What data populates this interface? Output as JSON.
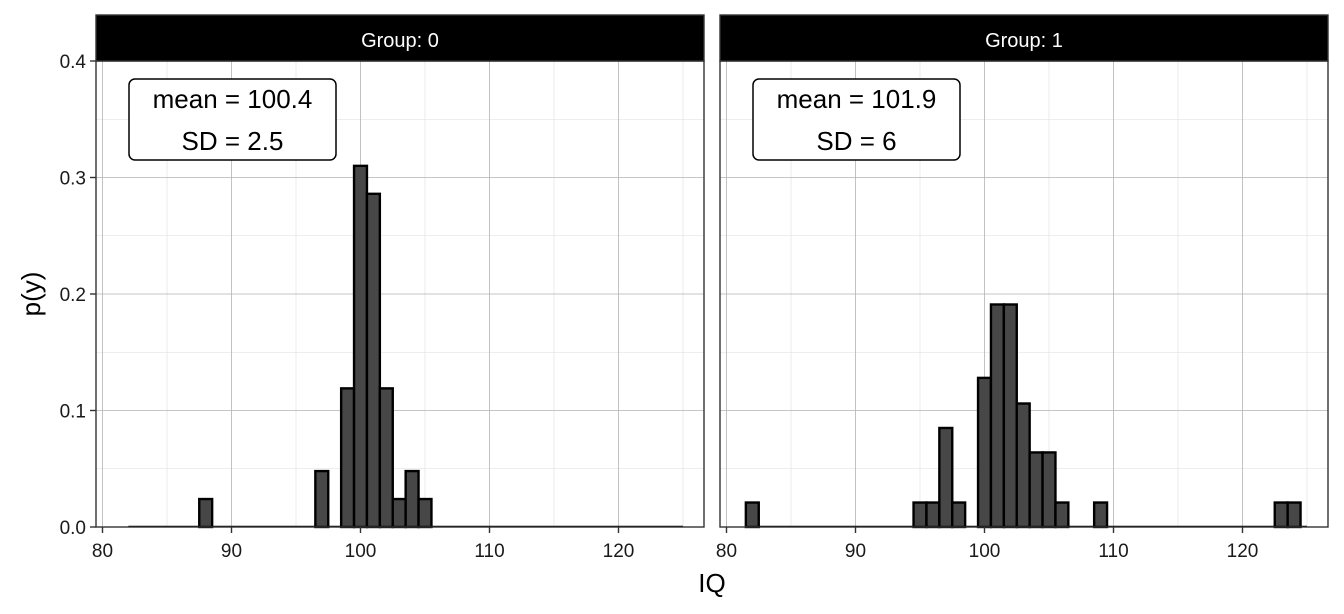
{
  "chart_data": {
    "type": "bar",
    "xlabel": "IQ",
    "ylabel": "p(y)",
    "xlim": [
      80,
      125
    ],
    "ylim": [
      0,
      0.4
    ],
    "x_ticks": [
      "80",
      "90",
      "100",
      "110",
      "120"
    ],
    "y_ticks": [
      "0.0",
      "0.1",
      "0.2",
      "0.3",
      "0.4"
    ],
    "bin_width": 1,
    "grid": true,
    "colors": {
      "bar_fill": "#474747",
      "bar_stroke": "#000000",
      "strip_bg": "#000000",
      "strip_text": "#ffffff",
      "grid": "#b3b3b3"
    },
    "panels": [
      {
        "strip": "Group: 0",
        "annotation": {
          "line1": "mean = 100.4",
          "line2": "SD = 2.5"
        },
        "range": [
          82,
          125
        ],
        "bins": [
          {
            "x": 88,
            "y": 0.024
          },
          {
            "x": 97,
            "y": 0.048
          },
          {
            "x": 99,
            "y": 0.119
          },
          {
            "x": 100,
            "y": 0.31
          },
          {
            "x": 101,
            "y": 0.286
          },
          {
            "x": 102,
            "y": 0.119
          },
          {
            "x": 103,
            "y": 0.024
          },
          {
            "x": 104,
            "y": 0.048
          },
          {
            "x": 105,
            "y": 0.024
          }
        ]
      },
      {
        "strip": "Group: 1",
        "annotation": {
          "line1": "mean = 101.9",
          "line2": "SD = 6"
        },
        "range": [
          82,
          125
        ],
        "bins": [
          {
            "x": 82,
            "y": 0.021
          },
          {
            "x": 95,
            "y": 0.021
          },
          {
            "x": 96,
            "y": 0.021
          },
          {
            "x": 97,
            "y": 0.085
          },
          {
            "x": 98,
            "y": 0.021
          },
          {
            "x": 100,
            "y": 0.128
          },
          {
            "x": 101,
            "y": 0.191
          },
          {
            "x": 102,
            "y": 0.191
          },
          {
            "x": 103,
            "y": 0.106
          },
          {
            "x": 104,
            "y": 0.064
          },
          {
            "x": 105,
            "y": 0.064
          },
          {
            "x": 106,
            "y": 0.021
          },
          {
            "x": 109,
            "y": 0.021
          },
          {
            "x": 123,
            "y": 0.021
          },
          {
            "x": 124,
            "y": 0.021
          }
        ]
      }
    ]
  }
}
